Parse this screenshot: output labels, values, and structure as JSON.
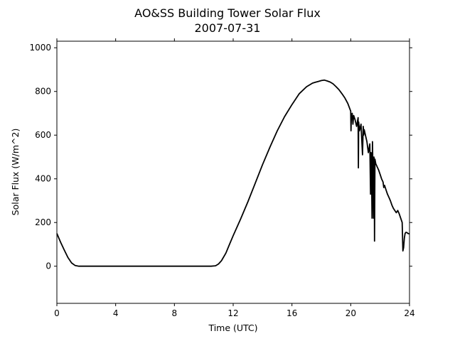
{
  "chart_data": {
    "type": "line",
    "title": "AO&SS Building Tower Solar Flux",
    "subtitle": "2007-07-31",
    "xlabel": "Time (UTC)",
    "ylabel": "Solar Flux (W/m^2)",
    "xlim": [
      0,
      24
    ],
    "ylim": [
      -170,
      1030
    ],
    "xticks": [
      0,
      4,
      8,
      12,
      16,
      20,
      24
    ],
    "yticks": [
      0,
      200,
      400,
      600,
      800,
      1000
    ],
    "grid": false,
    "line_color": "#000000",
    "series": [
      {
        "x": [
          0.0,
          0.25,
          0.5,
          0.75,
          1.0,
          1.25,
          1.5,
          1.75,
          2.0,
          2.5,
          3.0,
          4.0,
          5.0,
          6.0,
          7.0,
          8.0,
          9.0,
          10.0,
          10.5,
          10.8,
          11.0,
          11.2,
          11.5,
          11.75,
          12.0,
          12.5,
          13.0,
          13.5,
          14.0,
          14.5,
          15.0,
          15.5,
          16.0,
          16.5,
          17.0,
          17.2,
          17.4,
          17.6,
          17.8,
          18.0,
          18.2,
          18.4,
          18.6,
          18.8,
          19.0,
          19.2,
          19.4,
          19.6,
          19.8,
          20.0,
          20.02,
          20.04,
          20.1,
          20.15,
          20.2,
          20.3,
          20.4,
          20.5,
          20.52,
          20.54,
          20.6,
          20.7,
          20.8,
          20.85,
          20.88,
          20.92,
          21.0,
          21.1,
          21.2,
          21.3,
          21.35,
          21.38,
          21.4,
          21.45,
          21.48,
          21.5,
          21.55,
          21.58,
          21.6,
          21.62,
          21.65,
          21.7,
          21.8,
          21.9,
          22.0,
          22.1,
          22.2,
          22.25,
          22.3,
          22.4,
          22.5,
          22.6,
          22.7,
          22.8,
          22.9,
          23.0,
          23.1,
          23.2,
          23.3,
          23.4,
          23.5,
          23.55,
          23.6,
          23.65,
          23.7,
          23.75,
          23.8,
          23.9,
          24.0
        ],
        "y": [
          150,
          110,
          75,
          40,
          15,
          3,
          0,
          0,
          0,
          0,
          0,
          0,
          0,
          0,
          0,
          0,
          0,
          0,
          0,
          2,
          10,
          25,
          60,
          100,
          140,
          215,
          295,
          380,
          465,
          545,
          620,
          685,
          740,
          790,
          822,
          830,
          838,
          842,
          846,
          850,
          852,
          848,
          843,
          835,
          822,
          808,
          790,
          770,
          745,
          710,
          620,
          690,
          700,
          650,
          690,
          670,
          640,
          680,
          450,
          660,
          620,
          650,
          510,
          640,
          600,
          625,
          600,
          570,
          520,
          560,
          330,
          520,
          510,
          220,
          570,
          490,
          220,
          500,
          480,
          115,
          490,
          470,
          455,
          440,
          420,
          400,
          385,
          360,
          370,
          350,
          330,
          315,
          300,
          280,
          265,
          255,
          245,
          255,
          240,
          220,
          200,
          70,
          85,
          130,
          150,
          155,
          155,
          150,
          148
        ]
      }
    ]
  }
}
